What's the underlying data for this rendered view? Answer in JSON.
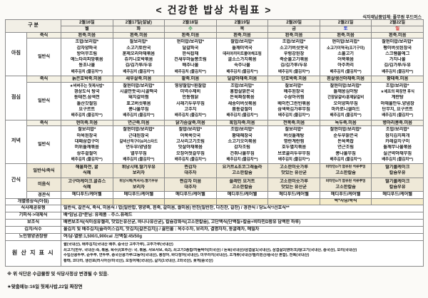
{
  "title": "< 건강한 밥상 차림표 >",
  "supplier": "식자재납품업체: 풀무원 푸드머스",
  "header": {
    "gubun": "구 분",
    "days": [
      {
        "date": "2월16일",
        "dow": "월",
        "color": "#1a1a1a"
      },
      {
        "date": "2월17일(설날)",
        "dow": "화",
        "color": "#1a1a1a"
      },
      {
        "date": "2월18일",
        "dow": "수",
        "color": "#1f8a3d"
      },
      {
        "date": "2월19일",
        "dow": "목",
        "color": "#1a1a1a"
      },
      {
        "date": "2월20일",
        "dow": "금",
        "color": "#1a1a1a"
      },
      {
        "date": "2월21일",
        "dow": "토",
        "color": "#2438cc"
      },
      {
        "date": "2월22일",
        "dow": "일",
        "color": "#d62323"
      }
    ]
  },
  "meals": [
    {
      "label": "아침",
      "juk_label": "죽식",
      "ilban_label": "일반식",
      "juk": [
        "흰죽.미음",
        "흰죽.미음",
        "흰죽.미음",
        "흰죽.미음",
        "흰죽.미음",
        "흰죽.미음",
        "흰죽.미음"
      ],
      "days": [
        [
          "조밥/보리밥*",
          "감자양파국",
          "방어무조림",
          "애느타리피망볶음",
          "동초나물",
          "배추김치 (물김치**)"
        ],
        [
          "찰보리밥*",
          "소고기토란국",
          "훈제오리야채볶음",
          "쥬키니호박볶음",
          "김/김가루/두유",
          "배추김치 (물김치**)"
        ],
        [
          "현미밥/보리밥*",
          "달걀파국",
          "한식잡채",
          "건새우마늘쫑조림",
          "배추나물",
          "배추김치 (물김치**)"
        ],
        [
          "찰밥/보리밥*",
          "들깨미역국",
          "데리야끼미트볼야채조림",
          "굴소스가지볶음",
          "숙주나물",
          "배추김치 (물김치**)"
        ],
        [
          "조밥/보리밥*",
          "소고기버섯뭇국",
          "우렁강된장",
          "죽순불고기볶음",
          "김/김가루/두유",
          "배추김치 (물김치**)"
        ],
        [
          "현미밥/보리밥*",
          "소고기미역국(조기구이)",
          "소불고기",
          "어묵볶음",
          "아주까리",
          "배추김치 (물김치**)"
        ],
        [
          "찰현미밥/보리밥*",
          "팽이버섯된장국",
          "스크램블에그",
          "가지나물",
          "김/김가루/두유",
          "배추김치 (물김치**)"
        ]
      ]
    },
    {
      "label": "점심",
      "juk_label": "죽식",
      "ilban_label": "일반식",
      "juk": [
        "늙은호박죽.미음",
        "새우살죽.미음",
        "팥죽.미음",
        "달걀야채죽.미음",
        "단호박죽.미음",
        "흰살생선야채죽.미음",
        "황태죽.미음"
      ],
      "days": [
        [
          "★비벼주는 헛제사밥*",
          "경상도식 탕국",
          "동태전.삼색전",
          "돌산갓절임",
          "요구르트",
          "배추김치 (물김치**)"
        ],
        [
          "찰현미밥/보리밥*",
          "시골만둣국/시골떡국",
          "돼지갈비찜",
          "표고버섯볶음",
          "콩나물무침",
          "배추김치 (물김치**)"
        ],
        [
          "영양찰밥*/흰찰밥",
          "미역수제비",
          "안동찜닭",
          "시래기두부무침",
          "고추지",
          "배추김치 (물김치**)"
        ],
        [
          "조밥/보리밥*",
          "홍합살맑은국",
          "돈육짜장볶음",
          "새송이버섯볶음",
          "봄동겉절이",
          "배추김치 (물김치**)"
        ],
        [
          "찰보리밥*",
          "배추된장국",
          "수삼아귀찜",
          "베이컨그린빈볶음",
          "삼색묵김가루무침",
          "배추김치 (물김치**)"
        ],
        [
          "찰현미밥/보리밥*",
          "들깨옹심이탕",
          "간장닭갈비/훈제닭갈비",
          "오이양파무침",
          "마카로니샐러드",
          "배추김치 (물김치**)"
        ],
        [
          "조밥/보리밥*",
          "★셰프의 짜장면 후식",
          "계란탕",
          "야채물만두.양념장",
          "단무지, 요구르트",
          "배추김치 (물김치**)"
        ]
      ]
    },
    {
      "label": "저녁",
      "juk_label": "죽식",
      "ilban_label": "일반식",
      "juk": [
        "현미죽.미음",
        "연근죽.미음",
        "닭가슴살죽.미음",
        "흑임자죽.미음",
        "전복죽.미음",
        "녹두죽.미음",
        "병아리콩죽.미음"
      ],
      "days": [
        [
          "찰보리밥*",
          "아욱된장국",
          "대패삼겹구이",
          "머위들깨볶음",
          "상추겉절이",
          "배추김치 (물김치**)"
        ],
        [
          "찰현미밥/보리밥*",
          "근대된장국",
          "갈비산적구이&머스타드",
          "연두부/양념장",
          "열무무침",
          "배추김치 (물김치**)"
        ],
        [
          "찰밥/보리밥*",
          "어묵쑥갓국",
          "고사리고기조림",
          "맛살야채볶음",
          "오징어젓갈무침",
          "배추김치 (물김치**)"
        ],
        [
          "조밥/보리밥*",
          "황태해장국",
          "소고기오이볶음",
          "감자조림",
          "건취나물무침",
          "배추김치 (물김치**)"
        ],
        [
          "찰보리밥*",
          "버섯들깨탕",
          "명란계란찜",
          "호두멸치볶음",
          "브로콜리두부무침",
          "배추김치 (물김치**)"
        ],
        [
          "찰현미밥/보리밥*",
          "순두부맑은국",
          "돈육폭찹",
          "연근조림",
          "콩나물무침",
          "배추김치 (물김치**)"
        ],
        [
          "조밥/보리밥*",
          "참치김치찌개",
          "카레갈치구이",
          "들깨무나물볶음",
          "실곤약야채무침",
          "배추김치 (물김치**)"
        ]
      ]
    }
  ],
  "snack": {
    "label": "간식",
    "rows": [
      {
        "label": "일반식/죽식",
        "cells": [
          [
            "해물파전, 귤",
            "식혜"
          ],
          [
            "휘낭시에.딸기우유",
            "보리차"
          ],
          [
            "찐감자",
            "대추차"
          ],
          [
            "요거트&초코그래놀라",
            "고소한칼슘"
          ],
          [
            "고소한미숫가루",
            "맛있는 유산균"
          ],
          [
            "비타민D가 함유된 석류푸딩",
            "고소한칼슘"
          ],
          [
            "딸기롤케이크",
            "칼슘우유"
          ]
        ]
      },
      {
        "label": "미음식",
        "cells": [
          [
            "고구마케이크.귤쥬스",
            "식혜"
          ],
          [
            "휘낭시에(적셔서).딸기우유",
            "보리차"
          ],
          [
            "찐감자 미음",
            "대추차"
          ],
          [
            "플레인 요거트",
            "고소한칼슘"
          ],
          [
            "고소한미숫가루",
            "맛있는 유산균"
          ],
          [
            "비타민D가 함유된 석류푸딩",
            "고소한칼슘"
          ],
          [
            "딸기롤케이크",
            "칼슘우유"
          ]
        ]
      },
      {
        "label": "경관식",
        "cells": [
          [
            "메디푸드/케어웰"
          ],
          [
            "메디푸드/케어웰"
          ],
          [
            "메디푸드/케어웰"
          ],
          [
            "메디푸드/케어웰"
          ],
          [
            "메디푸드/케어웰"
          ],
          [
            "메디푸드/케어웰"
          ],
          [
            "메디푸드/케어웰"
          ]
        ]
      }
    ]
  },
  "special_row": {
    "label": "개별병상식(아침)",
    "cells": [
      "",
      "",
      "",
      "",
      "",
      "박*자님/죽식",
      ""
    ]
  },
  "info_rows": [
    {
      "label": "식사제공유형",
      "text": "일반식, 갈은식, 죽식, 미음식 / 밥(일반밥, 영양죽, 흰죽, 갈미음, 쌀미음) 반찬(일반찬, 다진찬, 갈찬) / 경관식 / 당뇨식*/선호식**"
    },
    {
      "label": "기피식->대체식",
      "text": "배*임님.감*분님: 유제품→주스.퓨레드"
    },
    {
      "label": "보조식",
      "text": "배변보조식(식이섬유젤리, 맛있는유산균, 바나나유산균), 칼슘강화식(고소한칼슘), 고단백식(단백질+칼슘+비타민D함유 담백한 하루)"
    },
    {
      "label": "김치/식수",
      "text": "물김치 및 배추김치(슬라이스김치, 맛김치(갈은김치)) / 끓인물 : 옥수수차, 보리차, 결명자차, 둥굴레차, 메밀차"
    },
    {
      "label": "노인영양권장량",
      "text": "여/남-열량:1,500/1,900cal .단백질:45/50g"
    }
  ],
  "origin": {
    "label": "원 산 지 표 시",
    "lines": [
      "쌀(국내산), 배추김치(국내산 배추, 중국산 고추가루), 고추가루(국내산)",
      "쇠고기(한우, 국내산:죽, 볶음, 육수)/(호주산: 국, 볶음, 샤브샤브, 죽2), 쇠고기3종합/차돌박이(미국산) / 돈육(국내산)/삼겹살1(국내산), 삼겹살2(덴마크)/닭고기(국내산, 중국산), 오리(국내산)",
      "수입산콩두부, 순두부, 연두부, 중국산콩가루/고등어(국내산), 붕장어, 바다장어(국내산), 미꾸라지(국내산), 조개류(국내산/필리핀산/중국산 혼합), 전복(국내산)",
      "황태, 코다리, 생선포(러시아산/미국산), 오징어채(국내산), 갈치(1국내산, 2외국산), 꽃게(중국산)"
    ]
  },
  "footnotes": [
    "※ 위 식단은 수급물량 및 식당사정상 변경될 수 있음.",
    "★맞춤메뉴:16일 헛제사밥,22일 짜장면"
  ],
  "colors": {
    "header_bg": "#f2efe6",
    "porridge_row_bg": "#f4f1e4",
    "snack_row_bg": "#efe9d8",
    "special_row_bg": "#f5ecca",
    "sat_blue": "#2438cc",
    "sun_red": "#d62323",
    "wed_green": "#1f8a3d"
  }
}
